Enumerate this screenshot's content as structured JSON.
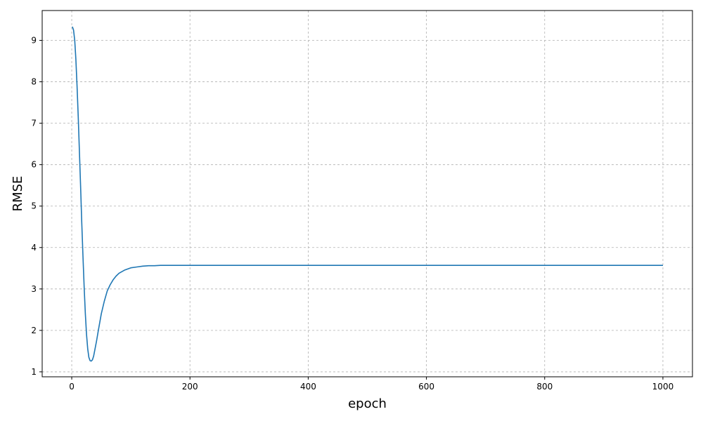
{
  "chart_data": {
    "type": "line",
    "title": "",
    "xlabel": "epoch",
    "ylabel": "RMSE",
    "xlim": [
      -50,
      1050
    ],
    "ylim": [
      0.88,
      9.72
    ],
    "xticks": [
      0,
      200,
      400,
      600,
      800,
      1000
    ],
    "yticks": [
      1,
      2,
      3,
      4,
      5,
      6,
      7,
      8,
      9
    ],
    "grid": true,
    "legend": "none",
    "series": [
      {
        "color": "#1f77b4",
        "x": [
          1,
          3,
          5,
          7,
          9,
          11,
          13,
          15,
          17,
          19,
          21,
          23,
          25,
          27,
          29,
          31,
          33,
          35,
          37,
          39,
          42,
          45,
          50,
          55,
          60,
          65,
          70,
          75,
          80,
          90,
          100,
          110,
          120,
          130,
          140,
          150,
          160,
          180,
          200,
          250,
          300,
          400,
          500,
          600,
          700,
          800,
          900,
          1000
        ],
        "y": [
          9.33,
          9.25,
          9.0,
          8.55,
          7.9,
          7.15,
          6.3,
          5.45,
          4.6,
          3.8,
          3.05,
          2.4,
          1.9,
          1.55,
          1.35,
          1.27,
          1.26,
          1.29,
          1.38,
          1.52,
          1.75,
          2.0,
          2.4,
          2.7,
          2.95,
          3.1,
          3.22,
          3.31,
          3.38,
          3.46,
          3.51,
          3.53,
          3.55,
          3.56,
          3.56,
          3.57,
          3.57,
          3.57,
          3.57,
          3.57,
          3.57,
          3.57,
          3.57,
          3.57,
          3.57,
          3.57,
          3.57,
          3.57
        ]
      }
    ]
  }
}
